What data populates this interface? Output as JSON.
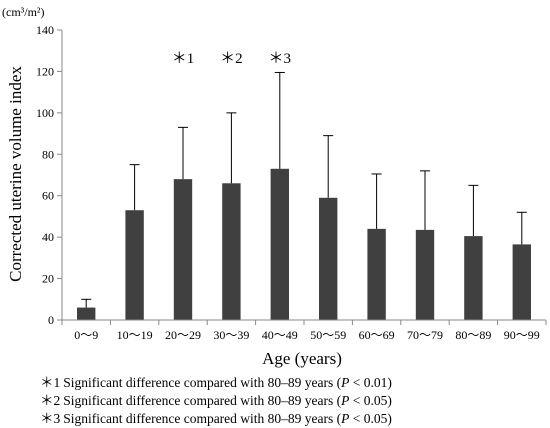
{
  "chart_data": {
    "type": "bar",
    "categories": [
      "0～9",
      "10～19",
      "20～29",
      "30～39",
      "40～49",
      "50～59",
      "60～69",
      "70～79",
      "80～89",
      "90～99"
    ],
    "values": [
      6,
      53,
      68,
      66,
      73,
      59,
      44,
      43.5,
      40.5,
      36.5
    ],
    "error_upper": [
      10,
      75,
      93,
      100,
      119.5,
      89,
      70.5,
      72,
      65,
      52
    ],
    "xlabel": "Age (years)",
    "ylabel": "Corrected uterine volume index",
    "y_unit": "(cm³/m²)",
    "ylim": [
      0,
      140
    ],
    "yticks": [
      0,
      20,
      40,
      60,
      80,
      100,
      120,
      140
    ],
    "grid": false,
    "bar_color": "#404040",
    "significance_marks": [
      {
        "category_index": 2,
        "label": "＊1"
      },
      {
        "category_index": 3,
        "label": "＊2"
      },
      {
        "category_index": 4,
        "label": "＊3"
      }
    ]
  },
  "footnotes": [
    {
      "mark": "＊1",
      "text": "Significant difference compared with 80–89 years (",
      "p": "P",
      "rest": " < 0.01)"
    },
    {
      "mark": "＊2",
      "text": "Significant difference compared with 80–89 years (",
      "p": "P",
      "rest": " < 0.05)"
    },
    {
      "mark": "＊3",
      "text": "Significant difference compared with 80–89 years (",
      "p": "P",
      "rest": " < 0.05)"
    }
  ]
}
